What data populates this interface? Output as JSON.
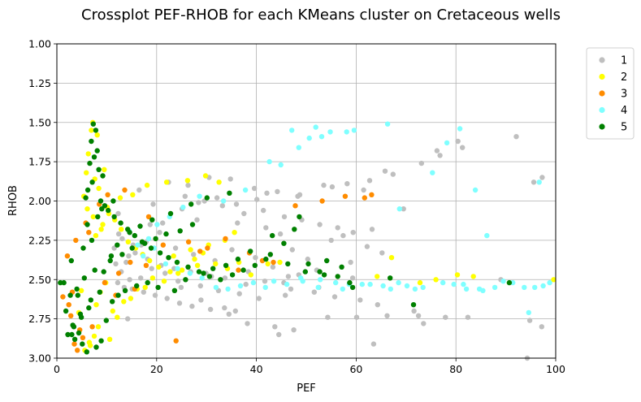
{
  "chart_data": {
    "type": "scatter",
    "title": "Crossplot PEF-RHOB for each KMeans cluster on Cretaceous wells",
    "xlabel": "PEF",
    "ylabel": "RHOB",
    "xlim": [
      0,
      100
    ],
    "ylim": [
      3.0,
      1.0
    ],
    "y_inverted": true,
    "xticks": [
      "0",
      "20",
      "40",
      "60",
      "80",
      "100"
    ],
    "yticks": [
      "1.00",
      "1.25",
      "1.50",
      "1.75",
      "2.00",
      "2.25",
      "2.50",
      "2.75",
      "3.00"
    ],
    "grid": true,
    "legend_position": "outside-top-right",
    "series": [
      {
        "name": "1",
        "color": "#bfbfbf",
        "x": [
          92.1,
          80.4,
          76.2,
          97.3,
          95.6,
          89.0,
          97.2,
          94.8,
          63.5,
          54.3,
          60.1,
          48.5,
          35.8,
          33.6,
          28.9,
          14.2,
          24.9,
          31.0,
          38.4,
          45.5,
          46.4,
          52.1,
          55.0,
          62.2,
          57.4,
          44.8,
          41.9,
          36.2,
          28.1,
          18.7,
          12.3,
          16.5,
          22.4,
          26.3,
          30.5,
          34.8,
          39.6,
          42.1,
          48.7,
          53.5,
          58.2,
          62.7,
          67.4,
          73.1,
          81.3,
          76.8,
          69.5,
          65.2,
          58.9,
          50.3,
          47.2,
          43.3,
          39.8,
          35.1,
          31.7,
          27.4,
          23.8,
          20.6,
          17.9,
          15.3,
          13.1,
          12.4,
          19.3,
          25.7,
          29.6,
          33.2,
          37.5,
          41.4,
          45.6,
          49.1,
          52.7,
          56.3,
          59.4,
          63.2,
          72.5,
          77.9,
          59.3,
          52.5,
          45.8,
          40.5,
          36.6,
          32.4,
          28.8,
          24.3,
          21.7,
          19.0,
          16.8,
          14.6,
          12.9,
          11.8,
          13.9,
          15.7,
          18.2,
          20.9,
          23.5,
          26.8,
          29.9,
          33.7,
          37.9,
          41.7,
          46.9,
          51.6,
          55.7,
          60.8,
          64.3,
          43.7,
          38.2,
          34.5,
          30.8,
          27.1,
          24.6,
          22.1,
          19.7,
          17.4,
          15.1,
          13.5,
          12.2,
          11.5,
          14.4,
          16.9,
          21.2,
          25.1,
          28.4,
          32.1,
          36.0,
          40.1,
          44.2,
          48.3,
          55.2,
          61.5,
          65.8,
          44.5,
          47.5,
          66.2,
          73.5,
          82.4,
          94.3,
          71.6
        ],
        "y": [
          1.59,
          1.62,
          1.68,
          1.85,
          1.88,
          2.5,
          2.8,
          2.76,
          2.91,
          2.74,
          2.74,
          2.47,
          2.7,
          2.68,
          2.63,
          2.75,
          2.55,
          2.48,
          2.45,
          2.52,
          2.48,
          2.44,
          2.25,
          2.29,
          2.22,
          2.21,
          2.17,
          2.14,
          2.12,
          2.15,
          2.08,
          1.93,
          1.88,
          1.9,
          1.85,
          1.86,
          1.92,
          1.95,
          1.96,
          1.9,
          1.89,
          1.87,
          1.83,
          1.76,
          1.66,
          1.71,
          2.05,
          2.33,
          2.39,
          2.37,
          2.31,
          2.42,
          2.36,
          2.31,
          2.38,
          2.34,
          2.3,
          2.2,
          2.26,
          2.28,
          2.24,
          2.21,
          2.02,
          1.97,
          2.0,
          2.03,
          2.08,
          2.06,
          2.1,
          2.12,
          2.15,
          2.17,
          2.2,
          2.18,
          2.73,
          2.74,
          2.49,
          2.55,
          2.6,
          2.62,
          2.59,
          2.57,
          2.54,
          2.51,
          2.46,
          2.43,
          2.49,
          2.5,
          2.45,
          2.4,
          2.39,
          2.33,
          2.37,
          2.41,
          2.43,
          2.45,
          2.46,
          2.49,
          2.53,
          2.51,
          2.56,
          2.58,
          2.61,
          2.63,
          2.66,
          2.8,
          2.78,
          2.72,
          2.69,
          2.67,
          2.65,
          2.62,
          2.6,
          2.58,
          2.56,
          2.55,
          2.52,
          2.3,
          2.35,
          2.28,
          2.14,
          2.05,
          2.01,
          1.98,
          2.02,
          1.99,
          1.94,
          1.97,
          1.91,
          1.93,
          1.81,
          2.85,
          2.82,
          2.73,
          2.78,
          2.74,
          3.0,
          2.7
        ]
      },
      {
        "name": "2",
        "color": "#ffff00",
        "x": [
          7.2,
          6.9,
          8.1,
          6.3,
          5.9,
          7.6,
          8.4,
          5.4,
          6.1,
          7.3,
          9.2,
          10.4,
          11.6,
          12.9,
          14.3,
          15.8,
          17.2,
          18.6,
          20.4,
          22.7,
          25.1,
          27.6,
          29.3,
          31.8,
          34.2,
          36.5,
          38.9,
          9.8,
          8.7,
          7.9,
          11.2,
          13.4,
          16.1,
          19.2,
          23.4,
          26.8,
          30.4,
          33.7,
          64.2,
          67.1,
          72.8,
          76.0,
          80.3,
          83.5,
          99.6,
          42.3,
          44.7,
          8.3,
          7.5,
          6.7,
          10.6,
          12.1,
          14.8,
          17.7,
          21.5,
          24.3,
          28.2,
          32.5,
          35.6,
          9.5,
          6.5,
          5.6,
          7.8,
          8.9,
          10.1,
          12.7,
          15.2,
          18.1,
          22.0,
          26.2,
          29.8,
          4.9,
          4.4
        ],
        "y": [
          1.5,
          1.55,
          1.58,
          1.7,
          1.82,
          1.86,
          1.92,
          1.97,
          2.05,
          2.1,
          2.15,
          2.08,
          2.12,
          2.18,
          2.26,
          2.3,
          2.34,
          2.38,
          2.42,
          2.45,
          2.44,
          2.37,
          2.33,
          2.4,
          2.43,
          2.39,
          2.47,
          2.52,
          2.58,
          2.66,
          2.7,
          2.64,
          2.56,
          2.49,
          2.35,
          2.31,
          2.28,
          2.25,
          2.48,
          2.36,
          2.52,
          2.5,
          2.47,
          2.48,
          2.5,
          2.4,
          2.39,
          2.8,
          2.86,
          2.92,
          2.88,
          2.74,
          2.62,
          2.55,
          2.51,
          2.46,
          2.41,
          1.88,
          2.2,
          1.8,
          2.9,
          2.95,
          2.22,
          2.18,
          2.04,
          1.98,
          1.96,
          1.9,
          1.88,
          1.87,
          1.84,
          2.57,
          2.71
        ]
      },
      {
        "name": "3",
        "color": "#ff8c00",
        "x": [
          1.2,
          2.4,
          3.1,
          2.8,
          4.6,
          3.5,
          2.1,
          5.2,
          6.4,
          4.1,
          8.5,
          10.2,
          13.6,
          18.4,
          21.3,
          23.9,
          26.4,
          30.2,
          33.8,
          38.6,
          41.2,
          43.4,
          47.8,
          53.2,
          57.8,
          61.7,
          63.1,
          14.7,
          17.9,
          12.4,
          9.6,
          11.8,
          5.8,
          3.8,
          7.1,
          28.7,
          36.4,
          15.6
        ],
        "y": [
          2.61,
          2.66,
          2.58,
          2.73,
          2.82,
          2.91,
          2.35,
          2.87,
          2.2,
          2.95,
          2.02,
          1.96,
          1.93,
          2.1,
          2.28,
          2.89,
          2.26,
          2.3,
          2.24,
          2.33,
          2.38,
          2.39,
          2.03,
          2.0,
          1.97,
          1.98,
          1.96,
          2.39,
          2.41,
          2.46,
          2.52,
          2.6,
          2.14,
          2.25,
          2.8,
          2.32,
          2.44,
          2.56
        ]
      },
      {
        "name": "4",
        "color": "#7fffff",
        "x": [
          47.1,
          48.5,
          50.6,
          51.9,
          53.1,
          54.8,
          59.6,
          66.3,
          78.2,
          80.8,
          83.9,
          86.2,
          84.7,
          96.7,
          97.5,
          98.8,
          95.8,
          94.6,
          91.4,
          87.8,
          82.1,
          79.6,
          73.4,
          70.2,
          68.5,
          66.9,
          62.8,
          58.6,
          55.9,
          52.4,
          49.3,
          46.1,
          43.5,
          41.8,
          39.4,
          36.8,
          34.3,
          31.9,
          29.1,
          26.7,
          24.2,
          21.8,
          19.5,
          17.3,
          44.9,
          42.6,
          37.8,
          33.4,
          28.6,
          25.3,
          22.6,
          20.1,
          18.4,
          16.2,
          14.5,
          61.2,
          57.3,
          52.8,
          48.9,
          58.1,
          68.7,
          75.3,
          81.5,
          93.7,
          89.5,
          85.4,
          77.4,
          71.8,
          65.4
        ],
        "y": [
          1.55,
          1.66,
          1.6,
          1.53,
          1.59,
          1.56,
          1.55,
          1.51,
          1.63,
          1.54,
          1.93,
          2.22,
          2.56,
          1.88,
          2.54,
          2.52,
          2.55,
          2.71,
          2.52,
          2.55,
          2.56,
          2.53,
          2.55,
          2.54,
          2.52,
          2.56,
          2.53,
          2.53,
          2.52,
          2.55,
          2.51,
          2.53,
          2.51,
          2.55,
          2.52,
          2.54,
          2.56,
          2.55,
          2.49,
          2.46,
          2.43,
          2.4,
          2.3,
          2.35,
          1.77,
          1.75,
          1.93,
          2.0,
          1.97,
          2.04,
          2.1,
          2.15,
          2.24,
          2.28,
          2.19,
          2.53,
          2.56,
          2.5,
          2.49,
          1.56,
          2.05,
          1.82,
          2.53,
          2.55,
          2.51,
          2.57,
          2.52,
          2.56,
          2.54
        ]
      },
      {
        "name": "5",
        "color": "#008000",
        "x": [
          7.3,
          7.8,
          6.9,
          8.1,
          7.5,
          6.6,
          8.4,
          9.2,
          7.1,
          6.2,
          5.8,
          8.8,
          9.6,
          10.3,
          11.5,
          12.8,
          14.2,
          15.6,
          17.1,
          18.9,
          20.7,
          22.4,
          24.1,
          26.3,
          28.5,
          30.6,
          32.8,
          35.2,
          37.4,
          39.7,
          41.9,
          43.2,
          45.5,
          47.6,
          48.6,
          50.4,
          52.7,
          54.1,
          56.3,
          58.7,
          59.3,
          66.8,
          71.5,
          90.7,
          1.4,
          2.2,
          3.6,
          4.4,
          5.1,
          6.0,
          7.9,
          8.9,
          3.2,
          4.9,
          6.4,
          9.9,
          11.1,
          12.3,
          13.7,
          16.0,
          18.2,
          20.3,
          23.6,
          25.8,
          29.4,
          31.3,
          33.9,
          36.3,
          38.8,
          42.8,
          46.3,
          49.8,
          53.6,
          57.1,
          2.7,
          4.0,
          5.5,
          7.6,
          10.7,
          13.1,
          15.1,
          17.6,
          19.8,
          21.9,
          24.7,
          27.2,
          0.7,
          1.8,
          3.4,
          4.7,
          6.8,
          8.6,
          9.4,
          10.9,
          12.1,
          14.6,
          16.7,
          19.1,
          22.8,
          26.9,
          30.1,
          34.6,
          2.9,
          5.3,
          7.0,
          8.2,
          9.0,
          11.3,
          6.1,
          4.2,
          3.0
        ],
        "y": [
          1.51,
          1.55,
          1.62,
          1.68,
          1.72,
          1.76,
          1.8,
          1.84,
          1.88,
          1.93,
          1.98,
          2.0,
          2.03,
          2.06,
          2.1,
          2.14,
          2.18,
          2.22,
          2.26,
          2.3,
          2.33,
          2.36,
          2.39,
          2.42,
          2.45,
          2.48,
          2.5,
          2.47,
          2.44,
          2.41,
          2.37,
          2.22,
          2.27,
          2.18,
          2.1,
          2.4,
          2.45,
          2.38,
          2.48,
          2.52,
          2.55,
          2.49,
          2.66,
          2.52,
          2.52,
          2.85,
          2.88,
          2.84,
          2.91,
          2.96,
          2.93,
          2.89,
          2.79,
          2.74,
          2.68,
          2.76,
          2.64,
          2.6,
          2.57,
          2.54,
          2.52,
          2.55,
          2.57,
          2.5,
          2.46,
          2.43,
          2.41,
          2.37,
          2.32,
          2.34,
          2.4,
          2.45,
          2.47,
          2.42,
          2.6,
          2.56,
          2.49,
          2.44,
          2.38,
          2.34,
          2.3,
          2.27,
          2.24,
          2.21,
          2.19,
          2.15,
          2.52,
          2.7,
          2.8,
          2.72,
          2.63,
          2.58,
          2.45,
          2.35,
          2.28,
          2.2,
          2.16,
          2.12,
          2.08,
          2.02,
          1.98,
          1.95,
          2.38,
          2.3,
          2.25,
          2.1,
          2.05,
          2.0,
          2.15,
          2.6,
          2.85
        ]
      }
    ]
  }
}
